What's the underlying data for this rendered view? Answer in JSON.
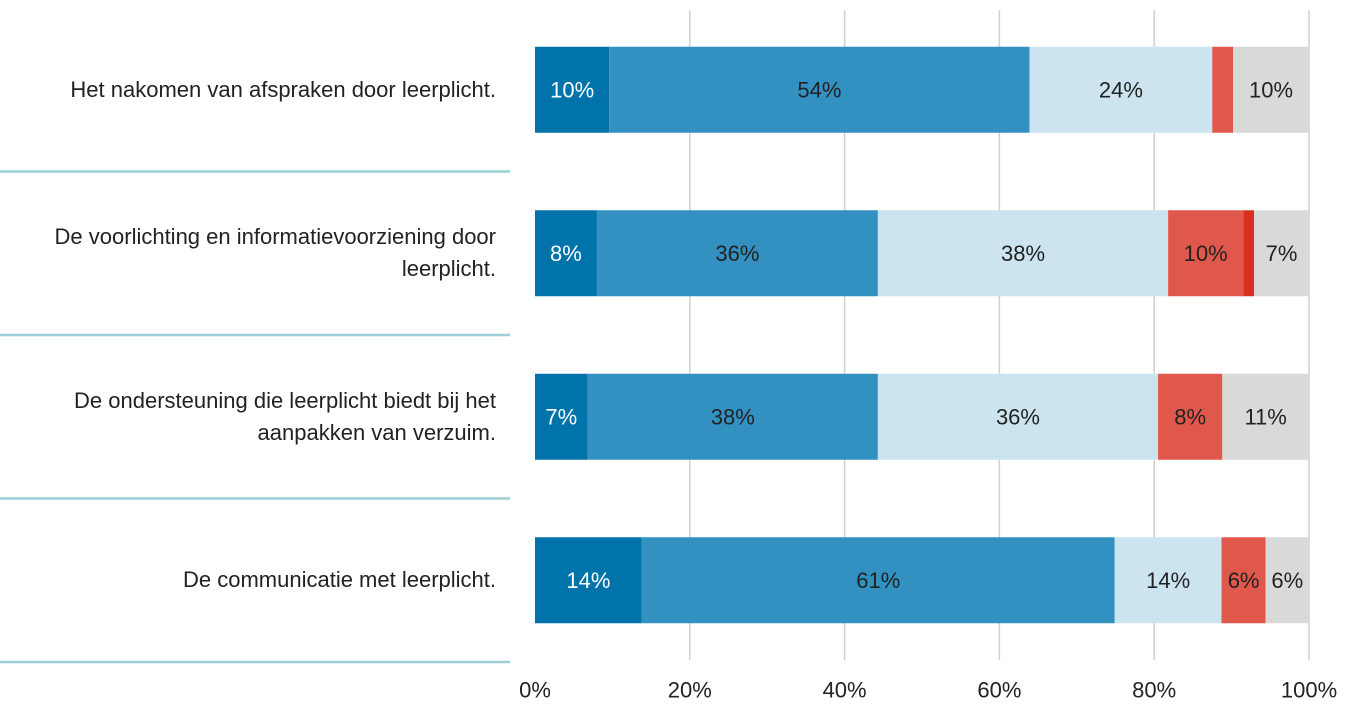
{
  "chart_data": {
    "type": "stacked-bar-horizontal",
    "categories": [
      "Het nakomen van afspraken door leerplicht.",
      "De voorlichting en informatievoorziening door leerplicht.",
      "De ondersteuning die leerplicht biedt bij het aanpakken van verzuim.",
      "De communicatie met leerplicht."
    ],
    "series": [
      {
        "color": "#0073ab",
        "values": [
          9.6,
          8.0,
          6.8,
          13.8
        ],
        "value_labels": [
          "10%",
          "8%",
          "7%",
          "14%"
        ]
      },
      {
        "color": "#3391c1",
        "values": [
          54.3,
          36.3,
          37.5,
          61.1
        ],
        "value_labels": [
          "54%",
          "36%",
          "38%",
          "61%"
        ]
      },
      {
        "color": "#cce4f0",
        "values": [
          23.6,
          37.5,
          36.2,
          13.8
        ],
        "value_labels": [
          "24%",
          "38%",
          "36%",
          "14%"
        ]
      },
      {
        "color": "#e0584b",
        "values": [
          2.7,
          9.7,
          8.3,
          5.7
        ],
        "value_labels": [
          null,
          "10%",
          "8%",
          "6%"
        ]
      },
      {
        "color": "#d7301f",
        "values": [
          0,
          1.4,
          0,
          0
        ],
        "value_labels": [
          null,
          null,
          null,
          null
        ]
      },
      {
        "color": "#d9d9d9",
        "values": [
          9.8,
          7.1,
          11.2,
          5.6
        ],
        "value_labels": [
          "10%",
          "7%",
          "11%",
          "6%"
        ]
      }
    ],
    "xlim": [
      0,
      100
    ],
    "xticks": [
      {
        "value": 0,
        "label": "0%"
      },
      {
        "value": 20,
        "label": "20%"
      },
      {
        "value": 40,
        "label": "40%"
      },
      {
        "value": 60,
        "label": "60%"
      },
      {
        "value": 80,
        "label": "80%"
      },
      {
        "value": 100,
        "label": "100%"
      }
    ],
    "grid": true
  }
}
